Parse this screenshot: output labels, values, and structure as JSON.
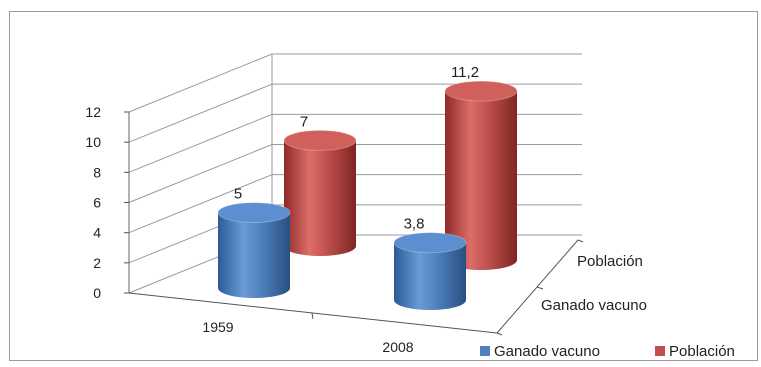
{
  "chart_data": {
    "type": "bar",
    "style": "3d-cylinder",
    "categories": [
      "1959",
      "2008"
    ],
    "series": [
      {
        "name": "Ganado vacuno",
        "values": [
          5,
          3.8
        ],
        "color": "#4f81bd",
        "value_labels": [
          "5",
          "3,8"
        ]
      },
      {
        "name": "Población",
        "values": [
          7,
          11.2
        ],
        "color": "#c0504d",
        "value_labels": [
          "7",
          "11,2"
        ]
      }
    ],
    "depth_labels": [
      "Población",
      "Ganado vacuno"
    ],
    "ylim": [
      0,
      12
    ],
    "yticks": [
      "0",
      "2",
      "4",
      "6",
      "8",
      "10",
      "12"
    ],
    "grid": true,
    "legend_position": "bottom-right",
    "title": "",
    "xlabel": "",
    "ylabel": ""
  }
}
